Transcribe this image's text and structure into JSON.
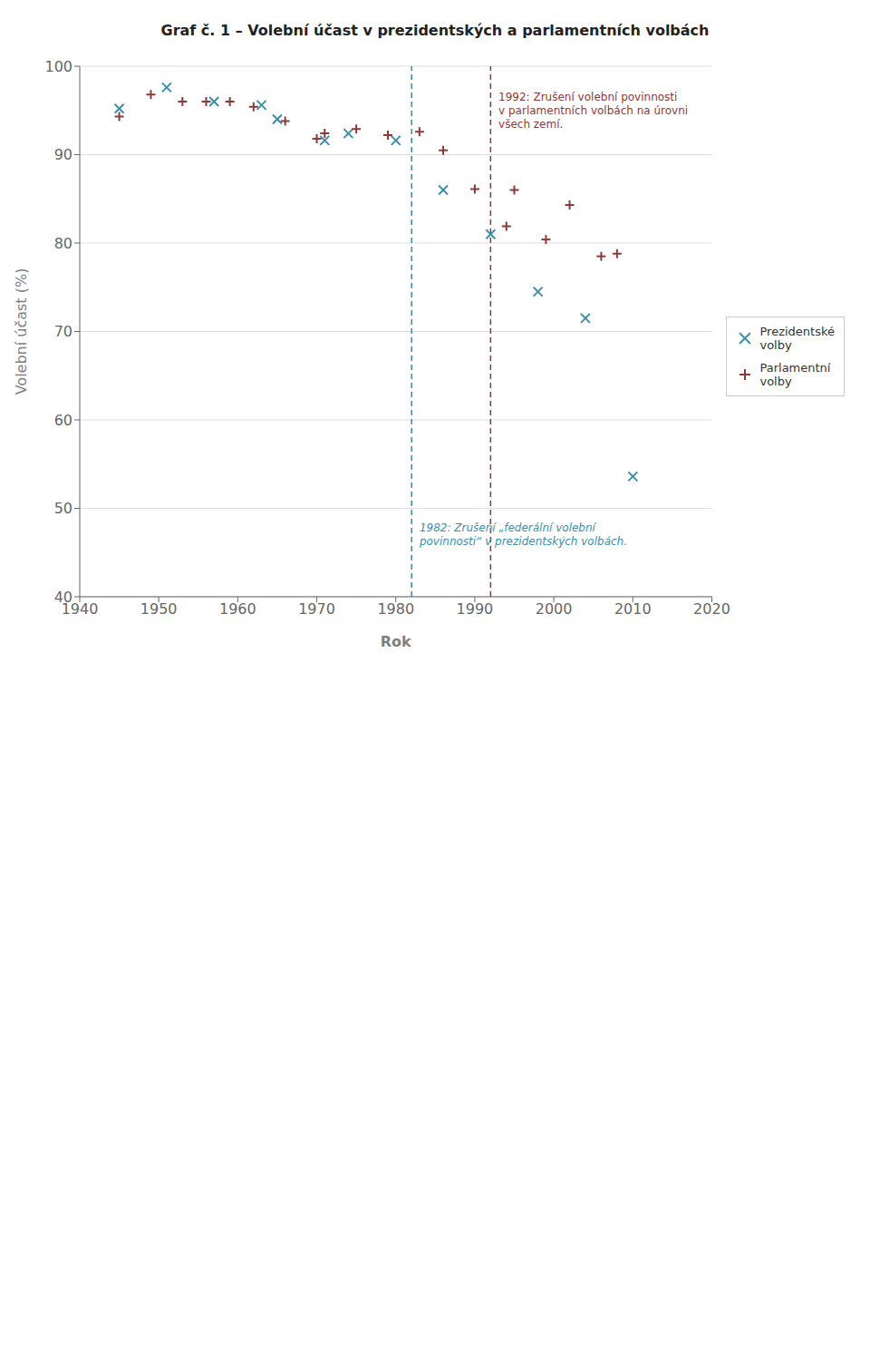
{
  "chart_data": {
    "type": "scatter",
    "title": "Graf č. 1 – Volební účast v prezidentských a parlamentních volbách",
    "xlabel": "Rok",
    "ylabel": "Volební účast (%)",
    "xlim": [
      1940,
      2020
    ],
    "ylim": [
      40,
      100
    ],
    "xticks": [
      1940,
      1950,
      1960,
      1970,
      1980,
      1990,
      2000,
      2010,
      2020
    ],
    "yticks": [
      40,
      50,
      60,
      70,
      80,
      90,
      100
    ],
    "grid": "y",
    "legend": "right",
    "series": [
      {
        "name": "Prezidentské\nvolby",
        "color": "#3d8fa8",
        "marker": "x",
        "x": [
          1945,
          1951,
          1957,
          1963,
          1965,
          1971,
          1974,
          1980,
          1986,
          1992,
          1998,
          2004,
          2010
        ],
        "values": [
          95.2,
          97.6,
          96.0,
          95.6,
          94.0,
          91.6,
          92.4,
          91.6,
          86.0,
          81.0,
          74.5,
          71.5,
          53.6
        ]
      },
      {
        "name": "Parlamentní\nvolby",
        "color": "#8b3a3a",
        "marker": "+",
        "x": [
          1945,
          1949,
          1953,
          1956,
          1959,
          1962,
          1966,
          1970,
          1971,
          1975,
          1979,
          1983,
          1986,
          1990,
          1994,
          1995,
          1999,
          2002,
          2006,
          2008
        ],
        "values": [
          94.3,
          96.8,
          96.0,
          96.0,
          96.0,
          95.4,
          93.8,
          91.8,
          92.4,
          92.9,
          92.2,
          92.6,
          90.5,
          86.1,
          81.9,
          86.0,
          80.4,
          84.3,
          78.5,
          78.8
        ]
      }
    ],
    "reference_lines": [
      {
        "x": 1982,
        "color": "#3d8fa8",
        "line_style": "dashed"
      },
      {
        "x": 1992,
        "color": "#8b3a3a",
        "line_style": "dashed"
      }
    ],
    "annotations": [
      {
        "text": "1992: Zrušení volební povinnosti\nv parlamentních volbách na úrovni\nvšech zemí.",
        "x": 1993,
        "y": 95,
        "color": "#8b3a3a"
      },
      {
        "text": "1982: Zrušení „federální volební\npovinnosti“ v prezidentských volbách.",
        "x": 1983,
        "y": 47,
        "color": "#3d8fa8"
      }
    ]
  }
}
